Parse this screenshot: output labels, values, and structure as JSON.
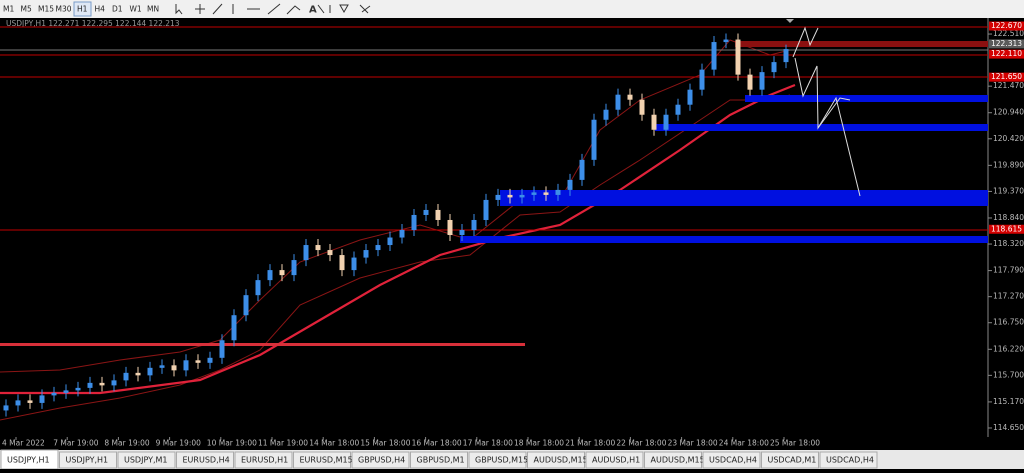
{
  "toolbar": {
    "timeframes": [
      "M1",
      "M5",
      "M15",
      "M30",
      "H1",
      "H4",
      "D1",
      "W1",
      "MN"
    ],
    "text_tool": "A"
  },
  "chart_header": "USDJPY,H1  122.271 122.295 122.144 122.213",
  "price_axis": {
    "range": [
      114.47,
      122.83
    ],
    "ticks": [
      {
        "value": 122.51,
        "label": "122.510"
      },
      {
        "value": 121.47,
        "label": "121.470"
      },
      {
        "value": 120.94,
        "label": "120.940"
      },
      {
        "value": 120.42,
        "label": "120.420"
      },
      {
        "value": 119.89,
        "label": "119.890"
      },
      {
        "value": 119.37,
        "label": "119.370"
      },
      {
        "value": 118.84,
        "label": "118.840"
      },
      {
        "value": 118.32,
        "label": "118.320"
      },
      {
        "value": 117.79,
        "label": "117.790"
      },
      {
        "value": 117.27,
        "label": "117.270"
      },
      {
        "value": 116.75,
        "label": "116.750"
      },
      {
        "value": 116.22,
        "label": "116.220"
      },
      {
        "value": 115.7,
        "label": "115.700"
      },
      {
        "value": 115.17,
        "label": "115.170"
      },
      {
        "value": 114.65,
        "label": "114.650"
      }
    ]
  },
  "price_labels": [
    {
      "value": 122.67,
      "label": "122.670",
      "color": "#d40000"
    },
    {
      "value": 122.313,
      "label": "122.313",
      "color": "#5a5a5a"
    },
    {
      "value": 122.11,
      "label": "122.110",
      "color": "#d40000"
    },
    {
      "value": 121.65,
      "label": "121.650",
      "color": "#d40000"
    },
    {
      "value": 118.615,
      "label": "118.615",
      "color": "#d40000"
    }
  ],
  "time_labels": [
    "4 Mar 2022",
    "7 Mar 19:00",
    "8 Mar 19:00",
    "9 Mar 19:00",
    "10 Mar 19:00",
    "11 Mar 19:00",
    "14 Mar 18:00",
    "15 Mar 18:00",
    "16 Mar 18:00",
    "17 Mar 18:00",
    "18 Mar 18:00",
    "21 Mar 18:00",
    "22 Mar 18:00",
    "23 Mar 18:00",
    "24 Mar 18:00",
    "25 Mar 18:00"
  ],
  "candles": [
    [
      115.0,
      115.22,
      114.88,
      115.1
    ],
    [
      115.1,
      115.32,
      114.98,
      115.2
    ],
    [
      115.2,
      115.32,
      115.03,
      115.15
    ],
    [
      115.15,
      115.42,
      115.03,
      115.3
    ],
    [
      115.3,
      115.47,
      115.18,
      115.35
    ],
    [
      115.35,
      115.52,
      115.23,
      115.4
    ],
    [
      115.4,
      115.57,
      115.28,
      115.45
    ],
    [
      115.45,
      115.67,
      115.33,
      115.55
    ],
    [
      115.55,
      115.67,
      115.38,
      115.5
    ],
    [
      115.5,
      115.72,
      115.38,
      115.6
    ],
    [
      115.6,
      115.87,
      115.48,
      115.75
    ],
    [
      115.75,
      115.87,
      115.58,
      115.7
    ],
    [
      115.7,
      115.97,
      115.58,
      115.85
    ],
    [
      115.85,
      116.02,
      115.73,
      115.9
    ],
    [
      115.9,
      116.02,
      115.68,
      115.8
    ],
    [
      115.8,
      116.12,
      115.68,
      116.0
    ],
    [
      116.0,
      116.12,
      115.83,
      115.95
    ],
    [
      115.95,
      116.17,
      115.83,
      116.05
    ],
    [
      116.05,
      116.52,
      115.93,
      116.4
    ],
    [
      116.4,
      117.02,
      116.28,
      116.9
    ],
    [
      116.9,
      117.42,
      116.78,
      117.3
    ],
    [
      117.3,
      117.72,
      117.18,
      117.6
    ],
    [
      117.6,
      117.92,
      117.48,
      117.8
    ],
    [
      117.8,
      117.92,
      117.58,
      117.7
    ],
    [
      117.7,
      118.12,
      117.58,
      118.0
    ],
    [
      118.0,
      118.42,
      117.88,
      118.3
    ],
    [
      118.3,
      118.42,
      118.08,
      118.2
    ],
    [
      118.2,
      118.32,
      117.98,
      118.1
    ],
    [
      118.1,
      118.22,
      117.68,
      117.8
    ],
    [
      117.8,
      118.17,
      117.68,
      118.05
    ],
    [
      118.05,
      118.32,
      117.93,
      118.2
    ],
    [
      118.2,
      118.42,
      118.08,
      118.3
    ],
    [
      118.3,
      118.57,
      118.18,
      118.45
    ],
    [
      118.45,
      118.72,
      118.33,
      118.6
    ],
    [
      118.6,
      119.02,
      118.48,
      118.9
    ],
    [
      118.9,
      119.12,
      118.78,
      119.0
    ],
    [
      119.0,
      119.12,
      118.68,
      118.8
    ],
    [
      118.8,
      118.92,
      118.38,
      118.5
    ],
    [
      118.5,
      118.72,
      118.38,
      118.6
    ],
    [
      118.6,
      118.92,
      118.48,
      118.8
    ],
    [
      118.8,
      119.32,
      118.68,
      119.2
    ],
    [
      119.2,
      119.42,
      119.08,
      119.3
    ],
    [
      119.3,
      119.42,
      119.13,
      119.25
    ],
    [
      119.25,
      119.42,
      119.13,
      119.3
    ],
    [
      119.3,
      119.47,
      119.18,
      119.35
    ],
    [
      119.35,
      119.47,
      119.18,
      119.3
    ],
    [
      119.3,
      119.52,
      119.18,
      119.4
    ],
    [
      119.4,
      119.72,
      119.28,
      119.6
    ],
    [
      119.6,
      120.12,
      119.48,
      120.0
    ],
    [
      120.0,
      120.92,
      119.88,
      120.8
    ],
    [
      120.8,
      121.12,
      120.68,
      121.0
    ],
    [
      121.0,
      121.42,
      120.88,
      121.3
    ],
    [
      121.3,
      121.42,
      121.08,
      121.2
    ],
    [
      121.2,
      121.32,
      120.78,
      120.9
    ],
    [
      120.9,
      121.02,
      120.48,
      120.6
    ],
    [
      120.6,
      121.02,
      120.48,
      120.9
    ],
    [
      120.9,
      121.22,
      120.78,
      121.1
    ],
    [
      121.1,
      121.52,
      120.98,
      121.4
    ],
    [
      121.4,
      121.92,
      121.28,
      121.8
    ],
    [
      121.8,
      122.47,
      121.68,
      122.35
    ],
    [
      122.35,
      122.52,
      122.23,
      122.4
    ],
    [
      122.4,
      122.52,
      121.58,
      121.7
    ],
    [
      121.7,
      121.82,
      121.28,
      121.4
    ],
    [
      121.4,
      121.87,
      121.28,
      121.75
    ],
    [
      121.75,
      122.07,
      121.63,
      121.95
    ],
    [
      121.95,
      122.3,
      121.83,
      122.21
    ]
  ],
  "tabs": [
    "USDJPY,H1",
    "USDJPY,H1",
    "USDJPY,M1",
    "EURUSD,H4",
    "EURUSD,H1",
    "EURUSD,M15",
    "GBPUSD,H4",
    "GBPUSD,M1",
    "GBPUSD,M15",
    "AUDUSD,M15",
    "AUDUSD,H1",
    "AUDUSD,M15",
    "USDCAD,H4",
    "USDCAD,M1",
    "USDCAD,H4"
  ]
}
